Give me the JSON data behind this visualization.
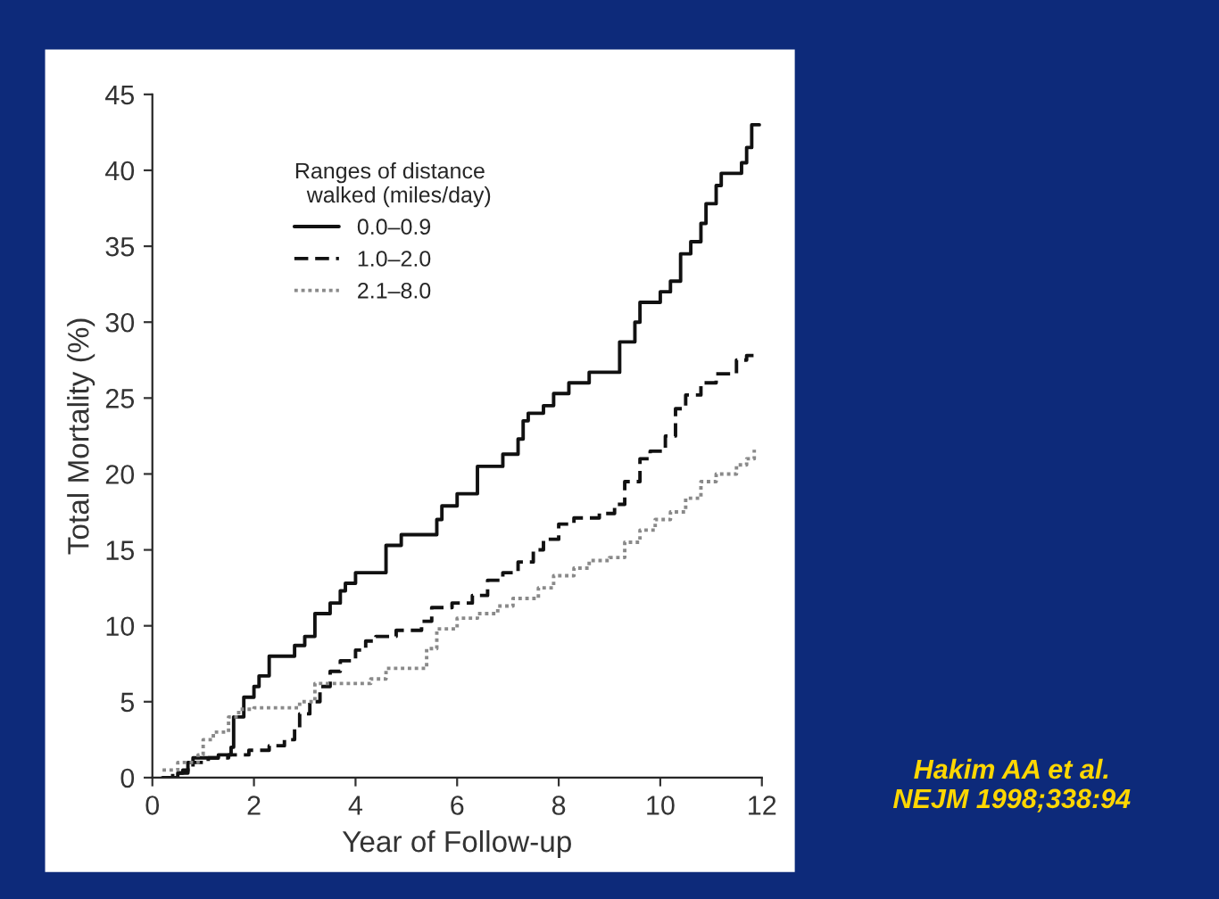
{
  "chart_data": {
    "type": "step",
    "xlabel": "Year of Follow-up",
    "ylabel": "Total Mortality (%)",
    "legend_title": "Ranges of distance\n  walked (miles/day)",
    "legend": "top left",
    "xlim": [
      0,
      12
    ],
    "xticks": [
      0,
      2,
      4,
      6,
      8,
      10,
      12
    ],
    "ylim": [
      0,
      45
    ],
    "yticks": [
      0,
      5,
      10,
      15,
      20,
      25,
      30,
      35,
      40,
      45
    ],
    "grid": false,
    "annotations": [
      "Hakim AA et al.\nNEJM 1998;338:94"
    ],
    "series": [
      {
        "name": "0.0–0.9",
        "color": "#111111",
        "line_style": "solid",
        "x": [
          0.2,
          0.5,
          0.7,
          0.8,
          1.3,
          1.55,
          1.6,
          1.8,
          2.0,
          2.1,
          2.3,
          2.8,
          3.0,
          3.2,
          3.5,
          3.7,
          3.8,
          4.0,
          4.6,
          4.9,
          5.6,
          5.7,
          6.0,
          6.4,
          6.9,
          7.2,
          7.3,
          7.4,
          7.7,
          7.9,
          8.2,
          8.6,
          9.2,
          9.5,
          9.6,
          10.0,
          10.2,
          10.4,
          10.6,
          10.8,
          10.9,
          11.1,
          11.2,
          11.6,
          11.7,
          11.8,
          11.95
        ],
        "values": [
          0,
          0.3,
          1,
          1.3,
          1.5,
          2,
          4,
          5.3,
          6,
          6.7,
          8,
          8.7,
          9.3,
          10.8,
          11.5,
          12.3,
          12.8,
          13.5,
          15.3,
          16,
          17,
          17.9,
          18.7,
          20.5,
          21.3,
          22.3,
          23.5,
          24,
          24.5,
          25.3,
          26,
          26.7,
          28.7,
          30,
          31.3,
          32,
          32.7,
          34.5,
          35.3,
          36.5,
          37.8,
          39,
          39.8,
          40.5,
          41.5,
          43,
          43
        ]
      },
      {
        "name": "1.0–2.0",
        "color": "#111111",
        "line_style": "dashed",
        "x": [
          0.2,
          0.4,
          0.6,
          0.8,
          1.1,
          1.5,
          1.9,
          2.3,
          2.6,
          2.8,
          2.9,
          3.1,
          3.3,
          3.5,
          3.7,
          4.0,
          4.2,
          4.4,
          4.8,
          5.3,
          5.5,
          5.9,
          6.3,
          6.6,
          6.9,
          7.2,
          7.5,
          7.7,
          8.0,
          8.3,
          8.8,
          9.1,
          9.3,
          9.6,
          9.8,
          10.1,
          10.3,
          10.5,
          10.8,
          11.1,
          11.5,
          11.7,
          11.95
        ],
        "values": [
          0,
          0.3,
          0.5,
          1,
          1.3,
          1.5,
          1.8,
          2.1,
          2.5,
          3.2,
          4.2,
          5,
          6,
          7,
          7.7,
          8.4,
          9,
          9.3,
          9.7,
          10.3,
          11.2,
          11.5,
          12,
          13,
          13.5,
          14.2,
          15,
          15.7,
          16.7,
          17.1,
          17.4,
          18,
          19.5,
          21,
          21.5,
          22.5,
          24.3,
          25.2,
          26,
          26.6,
          27.5,
          27.8,
          27.8
        ]
      },
      {
        "name": "2.1–8.0",
        "color": "#8a8a8a",
        "line_style": "dotted",
        "x": [
          0.2,
          0.5,
          0.9,
          1.0,
          1.2,
          1.5,
          1.7,
          2.0,
          2.9,
          3.2,
          3.6,
          4.3,
          4.6,
          5.3,
          5.4,
          5.6,
          6.0,
          6.4,
          6.8,
          7.1,
          7.6,
          7.9,
          8.3,
          8.6,
          9.0,
          9.3,
          9.6,
          9.9,
          10.2,
          10.5,
          10.8,
          11.1,
          11.5,
          11.7,
          11.85
        ],
        "values": [
          0.5,
          1,
          1.5,
          2.5,
          3,
          4,
          4.5,
          4.6,
          5,
          6.2,
          6.2,
          6.5,
          7.2,
          7.2,
          8.5,
          9.8,
          10.5,
          10.8,
          11.3,
          11.8,
          12.5,
          13.3,
          13.8,
          14.3,
          14.5,
          15.5,
          16.3,
          17,
          17.5,
          18.4,
          19.5,
          20,
          20.6,
          21,
          21.6
        ]
      }
    ]
  }
}
